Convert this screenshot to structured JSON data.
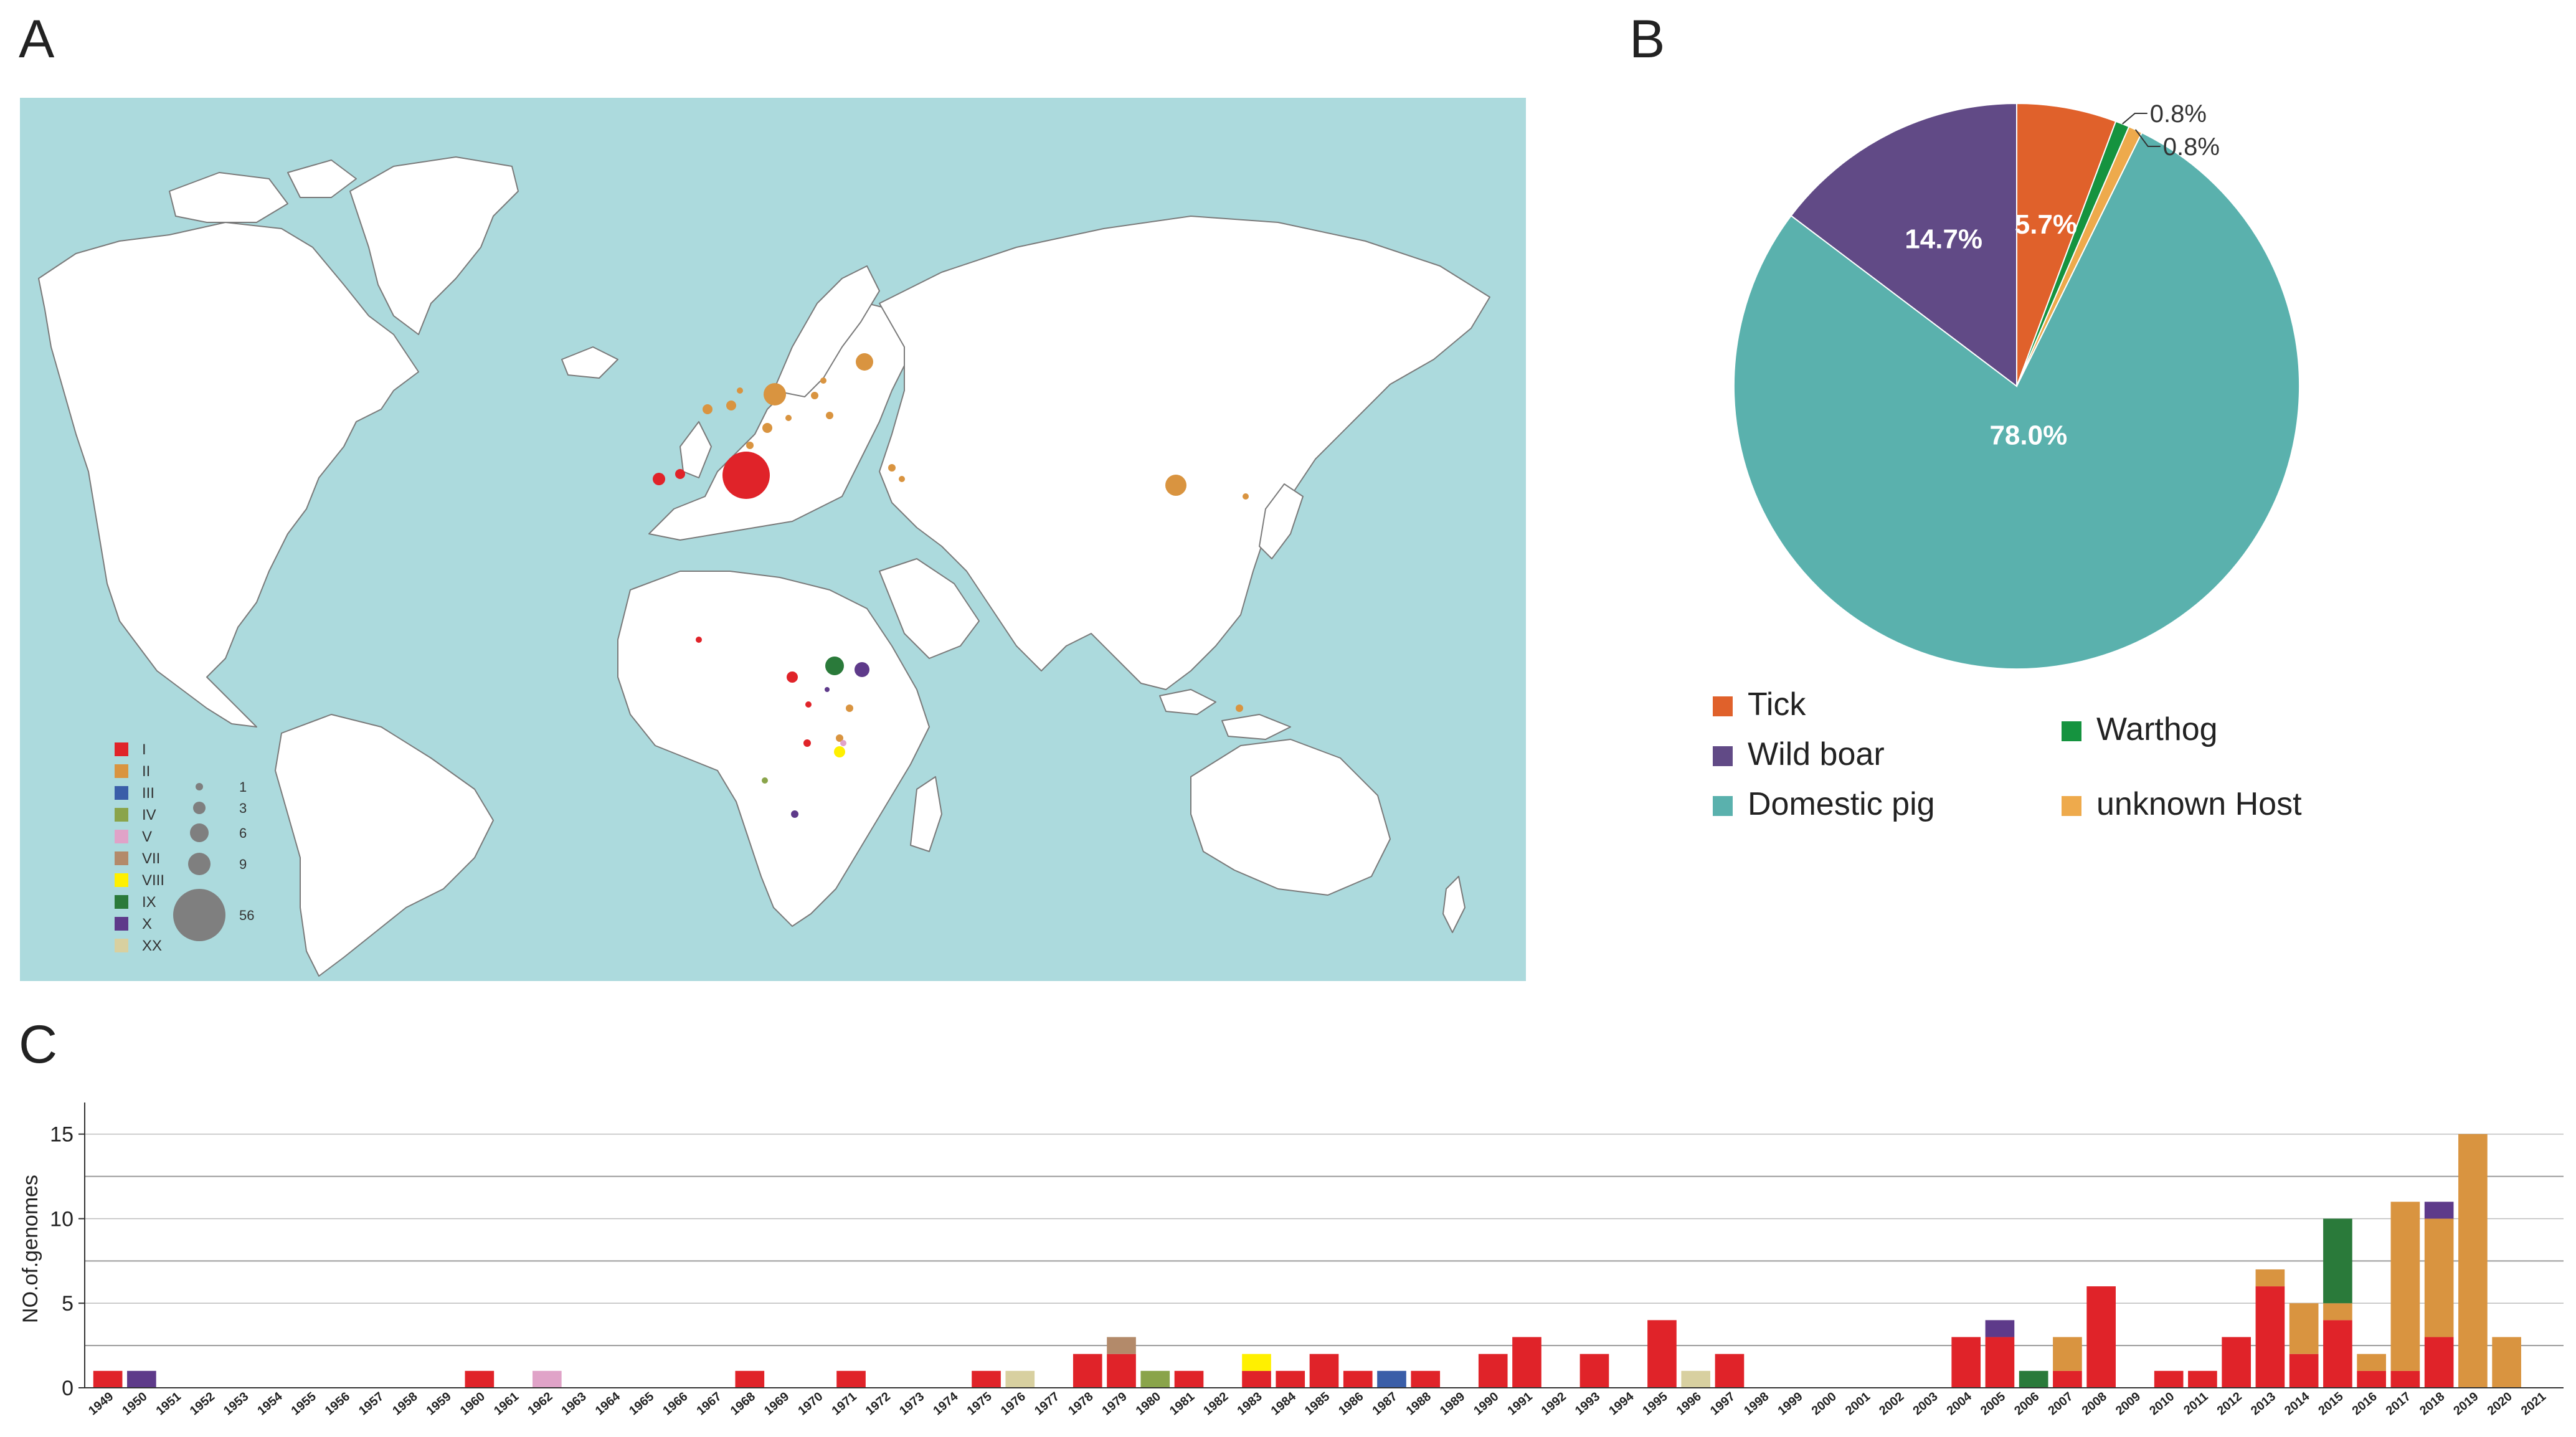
{
  "panels": {
    "a": "A",
    "b": "B",
    "c": "C"
  },
  "map": {
    "genotype_legend": [
      {
        "label": "I",
        "color": "#e02329"
      },
      {
        "label": "II",
        "color": "#d99440"
      },
      {
        "label": "III",
        "color": "#3a5ea8"
      },
      {
        "label": "IV",
        "color": "#8aa44a"
      },
      {
        "label": "V",
        "color": "#e0a3c8"
      },
      {
        "label": "VII",
        "color": "#b38a6a"
      },
      {
        "label": "VIII",
        "color": "#fff000"
      },
      {
        "label": "IX",
        "color": "#2a7a3a"
      },
      {
        "label": "X",
        "color": "#5e3a8a"
      },
      {
        "label": "XX",
        "color": "#d8d0a0"
      }
    ],
    "size_legend": [
      "1",
      "3",
      "6",
      "9",
      "56"
    ],
    "colors": {
      "ocean": "#acdadd",
      "land": "#ffffff",
      "border": "#7a7a7a",
      "size_marker": "#7f7f7f"
    }
  },
  "pie_chart": {
    "chart_data": {
      "type": "pie",
      "slices": [
        {
          "label": "Domestic pig",
          "value": 78.0,
          "display": "78.0%",
          "color": "#5ab1ad"
        },
        {
          "label": "Wild boar",
          "value": 14.7,
          "display": "14.7%",
          "color": "#614a86"
        },
        {
          "label": "Tick",
          "value": 5.7,
          "display": "5.7%",
          "color": "#e0612b"
        },
        {
          "label": "Warthog",
          "value": 0.8,
          "display": "0.8%",
          "color": "#15933f"
        },
        {
          "label": "unknown Host",
          "value": 0.8,
          "display": "0.8%",
          "color": "#eeaa4c"
        }
      ],
      "legend_position": "bottom"
    }
  },
  "bar_chart": {
    "chart_data": {
      "type": "bar",
      "stacked": true,
      "ylabel": "NO.of.genomes",
      "ylim": [
        0,
        16.5
      ],
      "yticks": [
        0,
        5,
        10,
        15
      ],
      "grid": true,
      "categories": [
        "1949",
        "1950",
        "1951",
        "1952",
        "1953",
        "1954",
        "1955",
        "1956",
        "1957",
        "1958",
        "1959",
        "1960",
        "1961",
        "1962",
        "1963",
        "1964",
        "1965",
        "1966",
        "1967",
        "1968",
        "1969",
        "1970",
        "1971",
        "1972",
        "1973",
        "1974",
        "1975",
        "1976",
        "1977",
        "1978",
        "1979",
        "1980",
        "1981",
        "1982",
        "1983",
        "1984",
        "1985",
        "1986",
        "1987",
        "1988",
        "1989",
        "1990",
        "1991",
        "1992",
        "1993",
        "1994",
        "1995",
        "1996",
        "1997",
        "1998",
        "1999",
        "2000",
        "2001",
        "2002",
        "2003",
        "2004",
        "2005",
        "2006",
        "2007",
        "2008",
        "2009",
        "2010",
        "2011",
        "2012",
        "2013",
        "2014",
        "2015",
        "2016",
        "2017",
        "2018",
        "2019",
        "2020",
        "2021"
      ],
      "series": [
        {
          "name": "I",
          "color": "#e02329",
          "values": [
            1,
            0,
            0,
            0,
            0,
            0,
            0,
            0,
            0,
            0,
            0,
            1,
            0,
            0,
            0,
            0,
            0,
            0,
            0,
            1,
            0,
            0,
            1,
            0,
            0,
            0,
            1,
            0,
            0,
            2,
            2,
            0,
            1,
            0,
            1,
            1,
            2,
            1,
            0,
            1,
            0,
            2,
            3,
            0,
            2,
            0,
            4,
            0,
            2,
            0,
            0,
            0,
            0,
            0,
            0,
            3,
            3,
            0,
            1,
            6,
            0,
            1,
            1,
            3,
            6,
            2,
            4,
            1,
            1,
            3,
            0,
            0,
            0
          ]
        },
        {
          "name": "II",
          "color": "#d99440",
          "values": [
            0,
            0,
            0,
            0,
            0,
            0,
            0,
            0,
            0,
            0,
            0,
            0,
            0,
            0,
            0,
            0,
            0,
            0,
            0,
            0,
            0,
            0,
            0,
            0,
            0,
            0,
            0,
            0,
            0,
            0,
            0,
            0,
            0,
            0,
            0,
            0,
            0,
            0,
            0,
            0,
            0,
            0,
            0,
            0,
            0,
            0,
            0,
            0,
            0,
            0,
            0,
            0,
            0,
            0,
            0,
            0,
            0,
            0,
            2,
            0,
            0,
            0,
            0,
            0,
            1,
            3,
            1,
            1,
            10,
            7,
            15,
            3,
            0
          ]
        },
        {
          "name": "III",
          "color": "#3a5ea8",
          "values": [
            0,
            0,
            0,
            0,
            0,
            0,
            0,
            0,
            0,
            0,
            0,
            0,
            0,
            0,
            0,
            0,
            0,
            0,
            0,
            0,
            0,
            0,
            0,
            0,
            0,
            0,
            0,
            0,
            0,
            0,
            0,
            0,
            0,
            0,
            0,
            0,
            0,
            0,
            1,
            0,
            0,
            0,
            0,
            0,
            0,
            0,
            0,
            0,
            0,
            0,
            0,
            0,
            0,
            0,
            0,
            0,
            0,
            0,
            0,
            0,
            0,
            0,
            0,
            0,
            0,
            0,
            0,
            0,
            0,
            0,
            0,
            0,
            0
          ]
        },
        {
          "name": "IV",
          "color": "#8aa44a",
          "values": [
            0,
            0,
            0,
            0,
            0,
            0,
            0,
            0,
            0,
            0,
            0,
            0,
            0,
            0,
            0,
            0,
            0,
            0,
            0,
            0,
            0,
            0,
            0,
            0,
            0,
            0,
            0,
            0,
            0,
            0,
            0,
            1,
            0,
            0,
            0,
            0,
            0,
            0,
            0,
            0,
            0,
            0,
            0,
            0,
            0,
            0,
            0,
            0,
            0,
            0,
            0,
            0,
            0,
            0,
            0,
            0,
            0,
            0,
            0,
            0,
            0,
            0,
            0,
            0,
            0,
            0,
            0,
            0,
            0,
            0,
            0,
            0,
            0
          ]
        },
        {
          "name": "V",
          "color": "#e0a3c8",
          "values": [
            0,
            0,
            0,
            0,
            0,
            0,
            0,
            0,
            0,
            0,
            0,
            0,
            0,
            1,
            0,
            0,
            0,
            0,
            0,
            0,
            0,
            0,
            0,
            0,
            0,
            0,
            0,
            0,
            0,
            0,
            0,
            0,
            0,
            0,
            0,
            0,
            0,
            0,
            0,
            0,
            0,
            0,
            0,
            0,
            0,
            0,
            0,
            0,
            0,
            0,
            0,
            0,
            0,
            0,
            0,
            0,
            0,
            0,
            0,
            0,
            0,
            0,
            0,
            0,
            0,
            0,
            0,
            0,
            0,
            0,
            0,
            0,
            0
          ]
        },
        {
          "name": "VII",
          "color": "#b38a6a",
          "values": [
            0,
            0,
            0,
            0,
            0,
            0,
            0,
            0,
            0,
            0,
            0,
            0,
            0,
            0,
            0,
            0,
            0,
            0,
            0,
            0,
            0,
            0,
            0,
            0,
            0,
            0,
            0,
            0,
            0,
            0,
            1,
            0,
            0,
            0,
            0,
            0,
            0,
            0,
            0,
            0,
            0,
            0,
            0,
            0,
            0,
            0,
            0,
            0,
            0,
            0,
            0,
            0,
            0,
            0,
            0,
            0,
            0,
            0,
            0,
            0,
            0,
            0,
            0,
            0,
            0,
            0,
            0,
            0,
            0,
            0,
            0,
            0,
            0
          ]
        },
        {
          "name": "VIII",
          "color": "#fff000",
          "values": [
            0,
            0,
            0,
            0,
            0,
            0,
            0,
            0,
            0,
            0,
            0,
            0,
            0,
            0,
            0,
            0,
            0,
            0,
            0,
            0,
            0,
            0,
            0,
            0,
            0,
            0,
            0,
            0,
            0,
            0,
            0,
            0,
            0,
            0,
            1,
            0,
            0,
            0,
            0,
            0,
            0,
            0,
            0,
            0,
            0,
            0,
            0,
            0,
            0,
            0,
            0,
            0,
            0,
            0,
            0,
            0,
            0,
            0,
            0,
            0,
            0,
            0,
            0,
            0,
            0,
            0,
            0,
            0,
            0,
            0,
            0,
            0,
            0
          ]
        },
        {
          "name": "IX",
          "color": "#2a7a3a",
          "values": [
            0,
            0,
            0,
            0,
            0,
            0,
            0,
            0,
            0,
            0,
            0,
            0,
            0,
            0,
            0,
            0,
            0,
            0,
            0,
            0,
            0,
            0,
            0,
            0,
            0,
            0,
            0,
            0,
            0,
            0,
            0,
            0,
            0,
            0,
            0,
            0,
            0,
            0,
            0,
            0,
            0,
            0,
            0,
            0,
            0,
            0,
            0,
            0,
            0,
            0,
            0,
            0,
            0,
            0,
            0,
            0,
            0,
            1,
            0,
            0,
            0,
            0,
            0,
            0,
            0,
            0,
            5,
            0,
            0,
            0,
            0,
            0,
            0
          ]
        },
        {
          "name": "X",
          "color": "#5e3a8a",
          "values": [
            0,
            1,
            0,
            0,
            0,
            0,
            0,
            0,
            0,
            0,
            0,
            0,
            0,
            0,
            0,
            0,
            0,
            0,
            0,
            0,
            0,
            0,
            0,
            0,
            0,
            0,
            0,
            0,
            0,
            0,
            0,
            0,
            0,
            0,
            0,
            0,
            0,
            0,
            0,
            0,
            0,
            0,
            0,
            0,
            0,
            0,
            0,
            0,
            0,
            0,
            0,
            0,
            0,
            0,
            0,
            0,
            1,
            0,
            0,
            0,
            0,
            0,
            0,
            0,
            0,
            0,
            0,
            0,
            0,
            1,
            0,
            0,
            0
          ]
        },
        {
          "name": "XX",
          "color": "#d8d0a0",
          "values": [
            0,
            0,
            0,
            0,
            0,
            0,
            0,
            0,
            0,
            0,
            0,
            0,
            0,
            0,
            0,
            0,
            0,
            0,
            0,
            0,
            0,
            0,
            0,
            0,
            0,
            0,
            0,
            1,
            0,
            0,
            0,
            0,
            0,
            0,
            0,
            0,
            0,
            0,
            0,
            0,
            0,
            0,
            0,
            0,
            0,
            0,
            0,
            1,
            0,
            0,
            0,
            0,
            0,
            0,
            0,
            0,
            0,
            0,
            0,
            0,
            0,
            0,
            0,
            0,
            0,
            0,
            0,
            0,
            0,
            0,
            0,
            0,
            0
          ]
        }
      ]
    }
  }
}
